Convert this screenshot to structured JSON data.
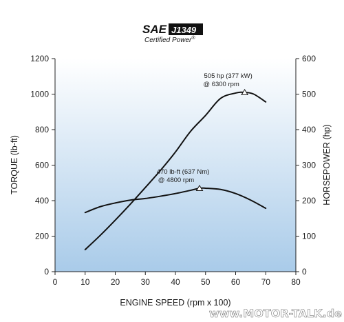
{
  "logo": {
    "brand": "SAE",
    "standard": "J1349",
    "tagline": "Certified Power",
    "tagline_mark": "®"
  },
  "watermark": {
    "text": "www.MOTOR-TALK.de"
  },
  "colors": {
    "plot_bg_top": "#ffffff",
    "plot_bg_bottom": "#a9cbe9",
    "line": "#111111",
    "marker_fill": "#ffffff"
  },
  "chart_data": {
    "type": "line",
    "xlabel": "ENGINE SPEED (rpm x 100)",
    "ylabel": "TORQUE (lb-ft)",
    "y2label": "HORSEPOWER (hp)",
    "xlim": [
      0,
      80
    ],
    "ylim": [
      0,
      1200
    ],
    "y2lim": [
      0,
      600
    ],
    "x_ticks": [
      "0",
      "10",
      "20",
      "30",
      "40",
      "50",
      "60",
      "70",
      "80"
    ],
    "y_ticks": [
      "0",
      "200",
      "400",
      "600",
      "800",
      "1000",
      "1200"
    ],
    "y2_ticks": [
      "0",
      "100",
      "200",
      "300",
      "400",
      "500",
      "600"
    ],
    "grid": false,
    "series": [
      {
        "axis": "right",
        "x": [
          10,
          15,
          20,
          25,
          30,
          35,
          40,
          45,
          50,
          55,
          60,
          63,
          66,
          70
        ],
        "values": [
          62,
          102,
          145,
          190,
          237,
          285,
          337,
          395,
          440,
          488,
          503,
          505,
          500,
          478
        ]
      },
      {
        "axis": "left",
        "x": [
          10,
          15,
          20,
          25,
          30,
          35,
          40,
          45,
          48,
          50,
          55,
          60,
          65,
          70
        ],
        "values": [
          333,
          366,
          387,
          403,
          412,
          425,
          440,
          458,
          470,
          470,
          463,
          440,
          403,
          357
        ]
      }
    ],
    "annotations": [
      {
        "line1": "505 hp (377 kW)",
        "line2": "@ 6300 rpm",
        "x": 63,
        "y": 505,
        "axis": "right"
      },
      {
        "line1": "470 lb-ft (637 Nm)",
        "line2": "@ 4800 rpm",
        "x": 48,
        "y": 470,
        "axis": "left"
      }
    ]
  }
}
